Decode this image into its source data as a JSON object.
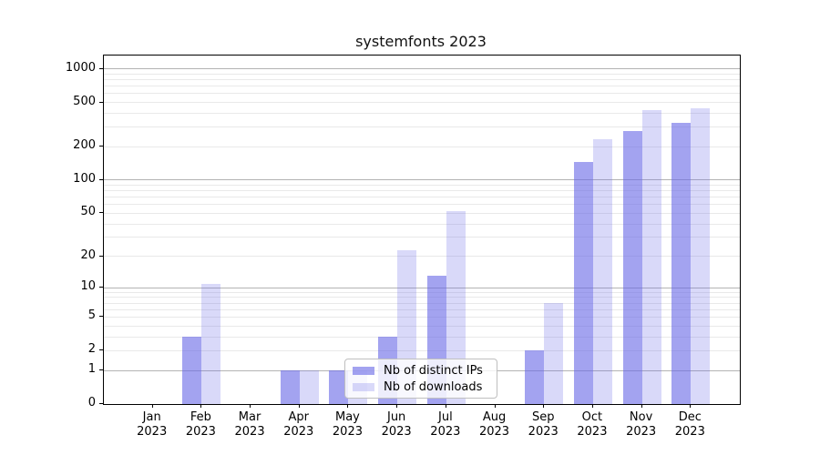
{
  "title": "systemfonts 2023",
  "colors": {
    "bar_base": "#6666e6",
    "bar_dark_alpha": 0.6,
    "bar_light_alpha": 0.25,
    "bar_dark_shown": "#a3a3f0",
    "bar_light_shown": "#d9d9f9",
    "major_grid": "#b3b3b3",
    "minor_grid": "#e9e9e9"
  },
  "chart_data": {
    "type": "bar",
    "title": "systemfonts 2023",
    "xlabel": "",
    "ylabel": "",
    "scale": "log10(1+x)",
    "grid": "on",
    "legend_position": "inside lower-center",
    "yticks": [
      0,
      1,
      2,
      5,
      10,
      20,
      50,
      100,
      200,
      500,
      1000
    ],
    "ylim": [
      0,
      1318
    ],
    "categories": [
      {
        "label": "Jan",
        "sublabel": "2023"
      },
      {
        "label": "Feb",
        "sublabel": "2023"
      },
      {
        "label": "Mar",
        "sublabel": "2023"
      },
      {
        "label": "Apr",
        "sublabel": "2023"
      },
      {
        "label": "May",
        "sublabel": "2023"
      },
      {
        "label": "Jun",
        "sublabel": "2023"
      },
      {
        "label": "Jul",
        "sublabel": "2023"
      },
      {
        "label": "Aug",
        "sublabel": "2023"
      },
      {
        "label": "Sep",
        "sublabel": "2023"
      },
      {
        "label": "Oct",
        "sublabel": "2023"
      },
      {
        "label": "Nov",
        "sublabel": "2023"
      },
      {
        "label": "Dec",
        "sublabel": "2023"
      }
    ],
    "series": [
      {
        "name": "Nb of distinct IPs",
        "values": [
          0,
          3,
          0,
          1,
          1,
          3,
          13,
          0,
          2,
          147,
          275,
          327
        ]
      },
      {
        "name": "Nb of downloads",
        "values": [
          0,
          11,
          0,
          1,
          1,
          23,
          52,
          0,
          7,
          234,
          428,
          440
        ]
      }
    ]
  }
}
